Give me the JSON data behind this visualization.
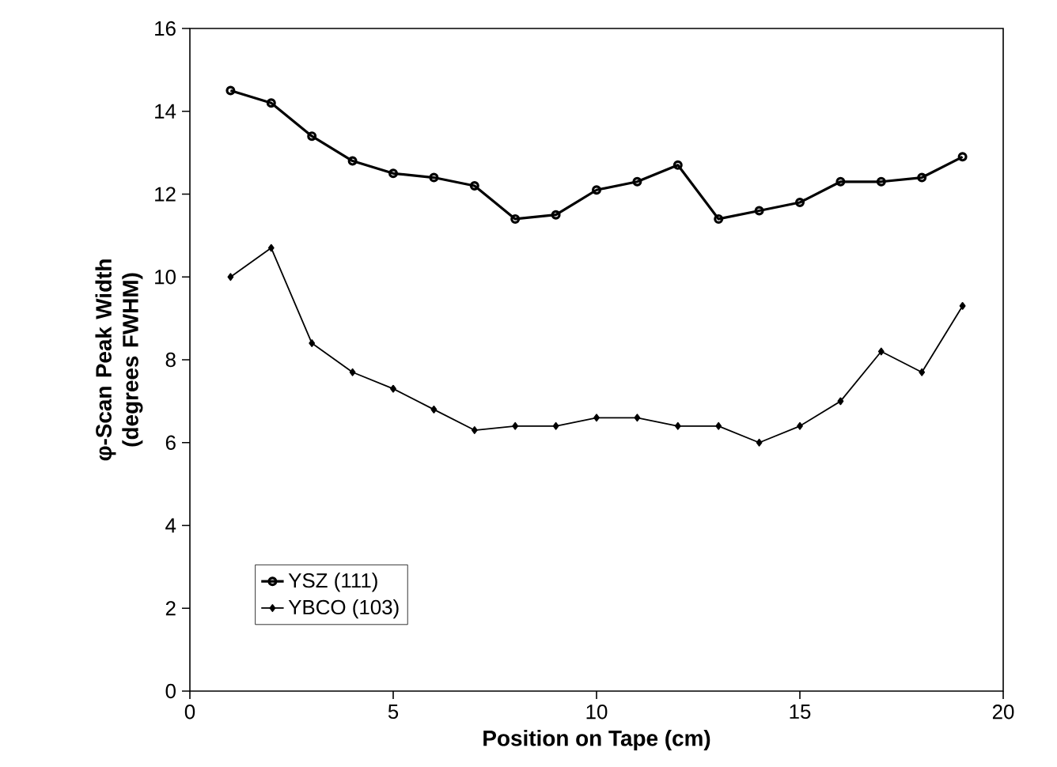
{
  "chart_data": {
    "type": "line",
    "xlabel": "Position on Tape  (cm)",
    "ylabel": "φ-Scan Peak Width (degrees FWHM)",
    "x": [
      1,
      2,
      3,
      4,
      5,
      6,
      7,
      8,
      9,
      10,
      11,
      12,
      13,
      14,
      15,
      16,
      17,
      18,
      19
    ],
    "series": [
      {
        "name": "YSZ (111)",
        "color": "#000000",
        "marker": "circle",
        "values": [
          14.5,
          14.2,
          13.4,
          12.8,
          12.5,
          12.4,
          12.2,
          11.4,
          11.5,
          12.1,
          12.3,
          12.7,
          11.4,
          11.6,
          11.8,
          12.3,
          12.3,
          12.4,
          12.9
        ]
      },
      {
        "name": "YBCO (103)",
        "color": "#000000",
        "marker": "diamond",
        "values": [
          10.0,
          10.7,
          8.4,
          7.7,
          7.3,
          6.8,
          6.3,
          6.4,
          6.4,
          6.6,
          6.6,
          6.4,
          6.4,
          6.0,
          6.4,
          7.0,
          8.2,
          7.7,
          9.3
        ]
      }
    ],
    "xlim": [
      0,
      20
    ],
    "xticks": [
      0,
      5,
      10,
      15,
      20
    ],
    "ylim": [
      0,
      16
    ],
    "yticks": [
      0,
      2,
      4,
      6,
      8,
      10,
      12,
      14,
      16
    ],
    "grid": false,
    "legend": "bottom left",
    "line_style": "solid"
  }
}
